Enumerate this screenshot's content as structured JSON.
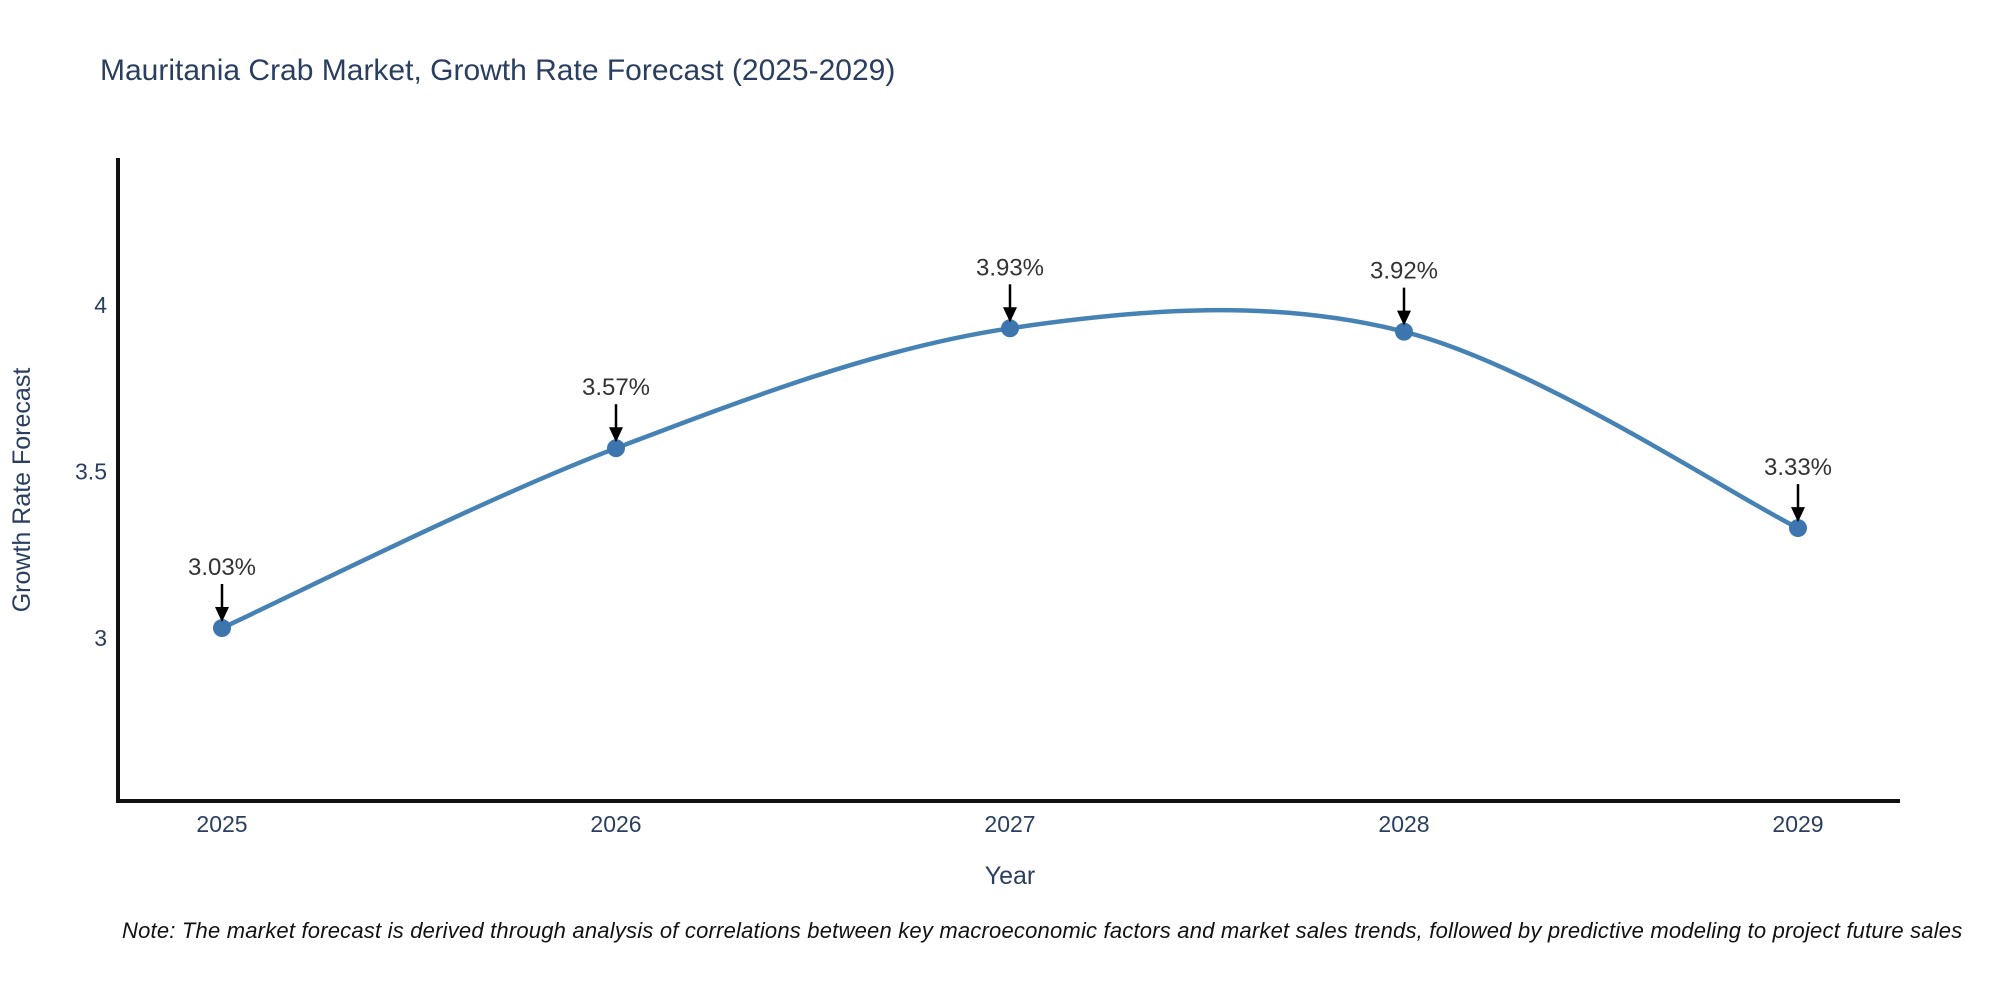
{
  "chart_data": {
    "type": "line",
    "title": "Mauritania Crab Market, Growth Rate Forecast (2025-2029)",
    "xlabel": "Year",
    "ylabel": "Growth Rate Forecast",
    "categories": [
      "2025",
      "2026",
      "2027",
      "2028",
      "2029"
    ],
    "series": [
      {
        "name": "Growth Rate Forecast",
        "values": [
          3.03,
          3.57,
          3.93,
          3.92,
          3.33
        ]
      }
    ],
    "point_labels": [
      "3.03%",
      "3.57%",
      "3.93%",
      "3.92%",
      "3.33%"
    ],
    "y_ticks": [
      3,
      3.5,
      4
    ],
    "y_tick_labels": [
      "3",
      "3.5",
      "4"
    ],
    "ylim": [
      2.5,
      4.44
    ],
    "line_shape": "spline",
    "grid": false,
    "legend_position": "none",
    "colors": {
      "line": "#4682b4",
      "marker": "#3d76ae",
      "axis": "#111111",
      "heading_text": "#2a3f5f",
      "annotation_text": "#333333",
      "arrow": "#000000"
    }
  },
  "note": "Note: The market forecast is derived through analysis of correlations between key macroeconomic factors and market sales trends, followed by predictive modeling to project future sales"
}
